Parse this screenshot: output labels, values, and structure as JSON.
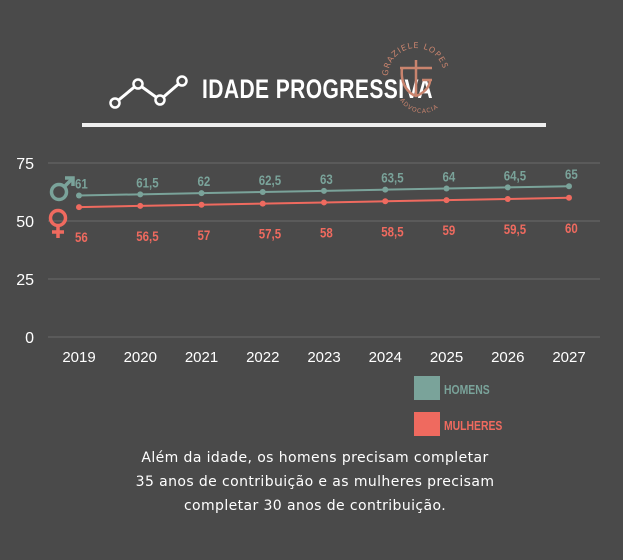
{
  "header": {
    "title": "IDADE PROGRESSIVA",
    "logo_top_text": "GRAZIELE LOPES",
    "logo_bottom_text": "ADVOCACIA",
    "logo_initial": "G"
  },
  "colors": {
    "background": "#4a4a4a",
    "men": "#7aa39a",
    "women": "#ef6a5f",
    "logo": "#c9846e",
    "text": "#ffffff"
  },
  "chart_data": {
    "type": "line",
    "x": [
      "2019",
      "2020",
      "2021",
      "2022",
      "2023",
      "2024",
      "2025",
      "2026",
      "2027"
    ],
    "ylim": [
      0,
      75
    ],
    "yticks": [
      "0",
      "25",
      "50",
      "75"
    ],
    "grid": true,
    "legend_position": "bottom-right",
    "series": [
      {
        "name": "HOMENS",
        "icon": "male-symbol-icon",
        "values": [
          61,
          61.5,
          62,
          62.5,
          63,
          63.5,
          64,
          64.5,
          65
        ],
        "labels": [
          "61",
          "61,5",
          "62",
          "62,5",
          "63",
          "63,5",
          "64",
          "64,5",
          "65"
        ]
      },
      {
        "name": "MULHERES",
        "icon": "female-symbol-icon",
        "values": [
          56,
          56.5,
          57,
          57.5,
          58,
          58.5,
          59,
          59.5,
          60
        ],
        "labels": [
          "56",
          "56,5",
          "57",
          "57,5",
          "58",
          "58,5",
          "59",
          "59,5",
          "60"
        ]
      }
    ]
  },
  "legend": {
    "men": "HOMENS",
    "women": "MULHERES"
  },
  "caption": {
    "lines": [
      "Além da idade, os homens precisam completar",
      "35 anos de contribuição e as mulheres precisam",
      "completar 30 anos de contribuição."
    ]
  }
}
